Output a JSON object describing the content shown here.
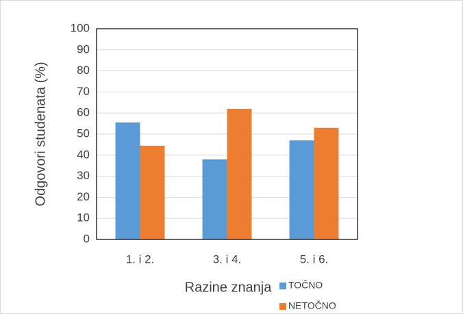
{
  "chart_data": {
    "type": "bar",
    "xlabel": "Razine znanja",
    "ylabel": "Odgovori studenata (%)",
    "categories": [
      "1. i 2.",
      "3. i 4.",
      "5. i 6."
    ],
    "series": [
      {
        "name": "TOČNO",
        "color": "#5b9bd5",
        "values": [
          55.5,
          38,
          47
        ]
      },
      {
        "name": "NETOČNO",
        "color": "#ed7d31",
        "values": [
          44.5,
          62,
          53
        ]
      }
    ],
    "ylim": [
      0,
      100
    ],
    "yticks": [
      0,
      10,
      20,
      30,
      40,
      50,
      60,
      70,
      80,
      90,
      100
    ],
    "grid": true,
    "legend": "bottom-right"
  }
}
